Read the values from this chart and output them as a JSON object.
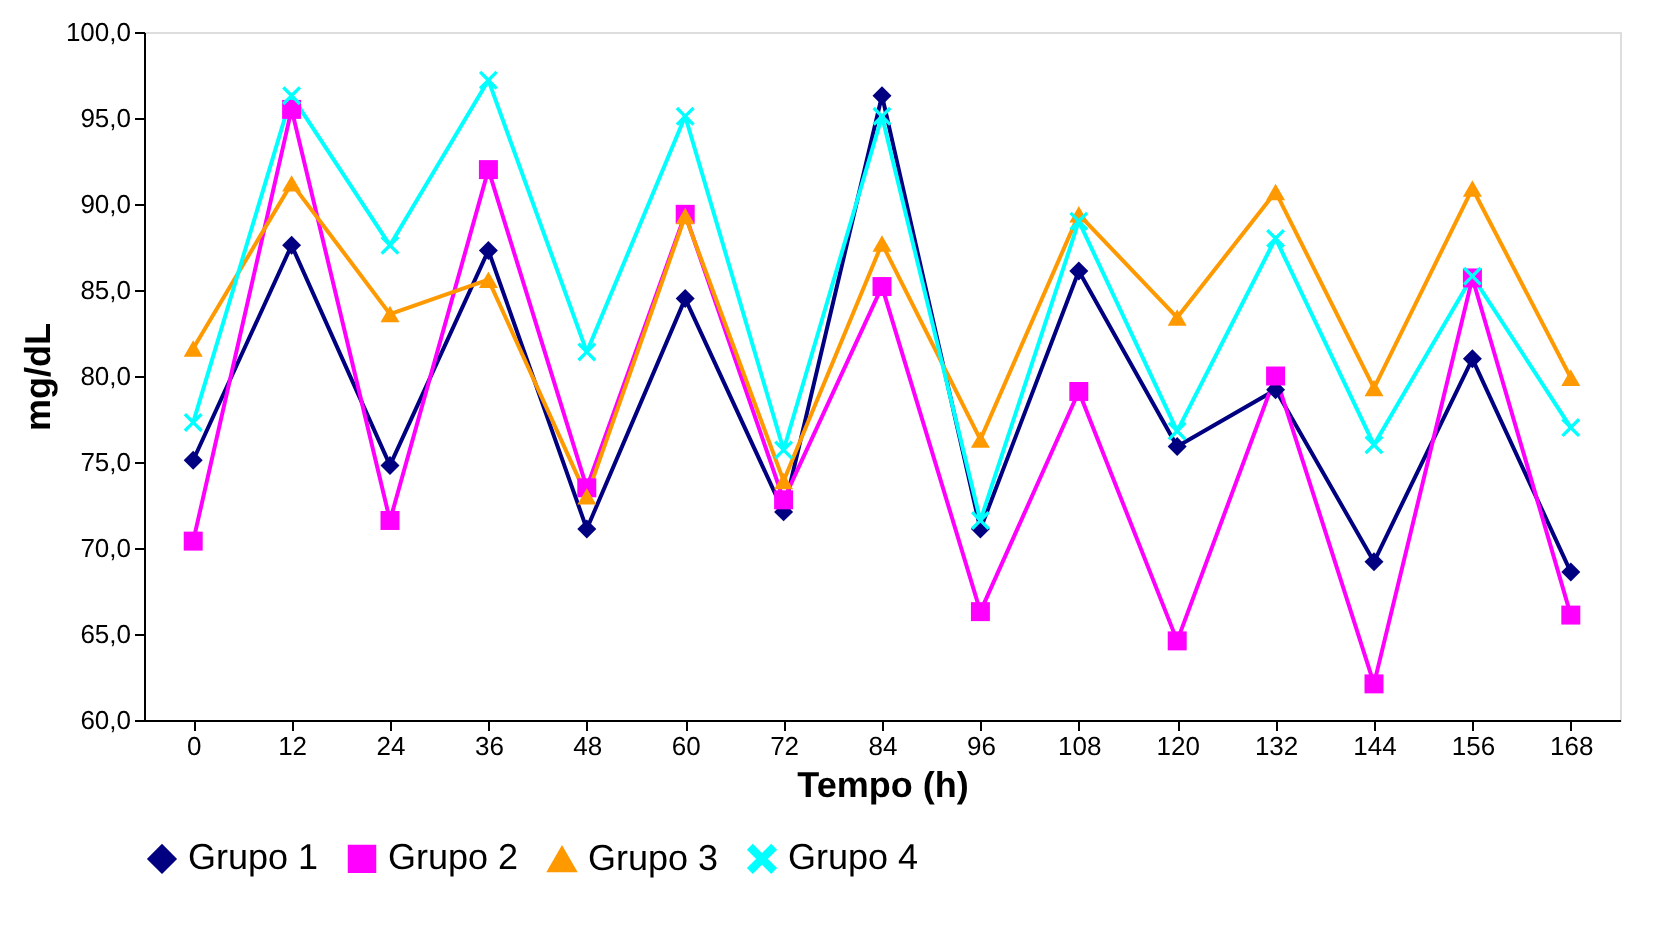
{
  "chart_data": {
    "type": "line",
    "xlabel": "Tempo (h)",
    "ylabel": "mg/dL",
    "categories": [
      "0",
      "12",
      "24",
      "36",
      "48",
      "60",
      "72",
      "84",
      "96",
      "108",
      "120",
      "132",
      "144",
      "156",
      "168"
    ],
    "series": [
      {
        "name": "Grupo 1",
        "color": "#000080",
        "marker": "diamond",
        "values": [
          75.1,
          87.6,
          74.8,
          87.3,
          71.1,
          84.5,
          72.1,
          96.3,
          71.1,
          86.1,
          75.9,
          79.2,
          69.2,
          81.0,
          68.6
        ]
      },
      {
        "name": "Grupo 2",
        "color": "#ff00ff",
        "marker": "square",
        "values": [
          70.4,
          95.5,
          71.6,
          92.0,
          73.5,
          89.4,
          72.8,
          85.2,
          66.3,
          79.1,
          64.6,
          80.0,
          62.1,
          85.7,
          66.1
        ]
      },
      {
        "name": "Grupo 3",
        "color": "#ff9900",
        "marker": "triangle",
        "values": [
          81.6,
          91.2,
          83.6,
          85.6,
          73.0,
          89.3,
          73.9,
          87.7,
          76.3,
          89.4,
          83.4,
          90.7,
          79.3,
          90.9,
          79.9
        ]
      },
      {
        "name": "Grupo 4",
        "color": "#00ffff",
        "marker": "cross",
        "values": [
          77.3,
          96.3,
          87.6,
          97.2,
          81.4,
          95.1,
          75.7,
          95.1,
          71.6,
          89.0,
          76.8,
          88.0,
          76.0,
          85.8,
          77.0
        ]
      }
    ],
    "ylim": [
      60,
      100
    ],
    "yticks": [
      {
        "value": 60,
        "label": "60,0"
      },
      {
        "value": 65,
        "label": "65,0"
      },
      {
        "value": 70,
        "label": "70,0"
      },
      {
        "value": 75,
        "label": "75,0"
      },
      {
        "value": 80,
        "label": "80,0"
      },
      {
        "value": 85,
        "label": "85,0"
      },
      {
        "value": 90,
        "label": "90,0"
      },
      {
        "value": 95,
        "label": "95,0"
      },
      {
        "value": 100,
        "label": "100,0"
      }
    ],
    "grid": false,
    "legend": "bottom",
    "line_style": "solid"
  }
}
